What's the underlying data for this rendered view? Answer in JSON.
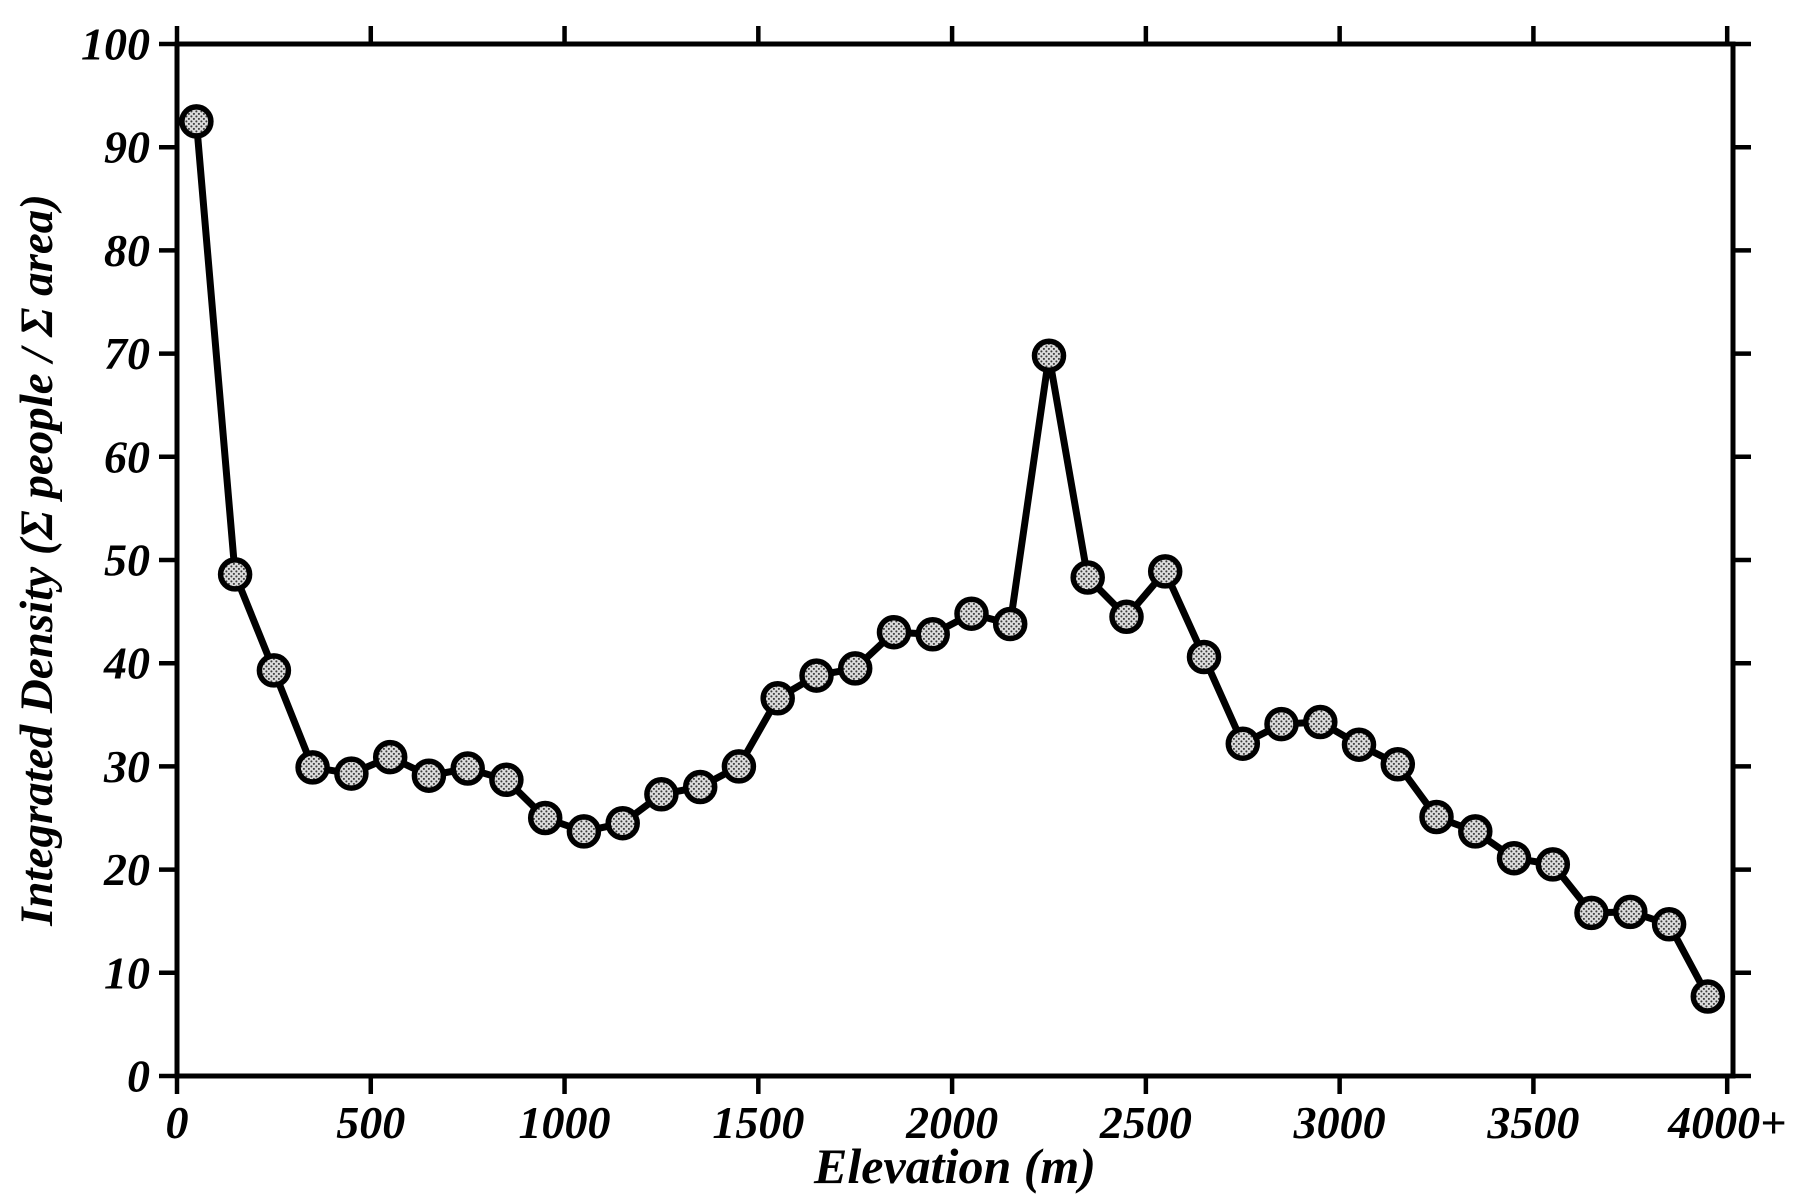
{
  "figure": {
    "background_color": "#ffffff",
    "ink_color": "#000000",
    "marker_fill_color": "#dcdcdc",
    "marker_dot_color": "#3a3a3a"
  },
  "chart_data": {
    "type": "line",
    "title": "",
    "xlabel": "Elevation (m)",
    "ylabel": "Integrated Density (Σ people / Σ area)",
    "series": [
      {
        "name": "integrated-density-vs-elevation",
        "x": [
          50,
          150,
          250,
          350,
          450,
          550,
          650,
          750,
          850,
          950,
          1050,
          1150,
          1250,
          1350,
          1450,
          1550,
          1650,
          1750,
          1850,
          1950,
          2050,
          2150,
          2250,
          2350,
          2450,
          2550,
          2650,
          2750,
          2850,
          2950,
          3050,
          3150,
          3250,
          3350,
          3450,
          3550,
          3650,
          3750,
          3850,
          3950
        ],
        "values": [
          92.5,
          48.6,
          39.3,
          29.9,
          29.3,
          30.9,
          29.1,
          29.8,
          28.7,
          25.0,
          23.7,
          24.5,
          27.3,
          28.0,
          30.0,
          36.6,
          38.8,
          39.5,
          43.0,
          42.8,
          44.8,
          43.8,
          69.8,
          48.3,
          44.5,
          48.9,
          40.6,
          32.2,
          34.1,
          34.3,
          32.1,
          30.2,
          25.1,
          23.7,
          21.1,
          20.5,
          15.8,
          15.9,
          14.7,
          7.7
        ]
      }
    ],
    "xlim": [
      0,
      4015
    ],
    "ylim": [
      0,
      100
    ],
    "x_tick_values": [
      0,
      500,
      1000,
      1500,
      2000,
      2500,
      3000,
      3500,
      4000
    ],
    "x_tick_labels": [
      "0",
      "500",
      "1000",
      "1500",
      "2000",
      "2500",
      "3000",
      "3500",
      "4000+"
    ],
    "y_tick_values": [
      0,
      10,
      20,
      30,
      40,
      50,
      60,
      70,
      80,
      90,
      100
    ],
    "y_tick_labels": [
      "0",
      "10",
      "20",
      "30",
      "40",
      "50",
      "60",
      "70",
      "80",
      "90",
      "100"
    ],
    "grid": false,
    "legend": "none",
    "ticks_on_all_sides": true,
    "marker_style": "dotted-halftone-circle"
  }
}
